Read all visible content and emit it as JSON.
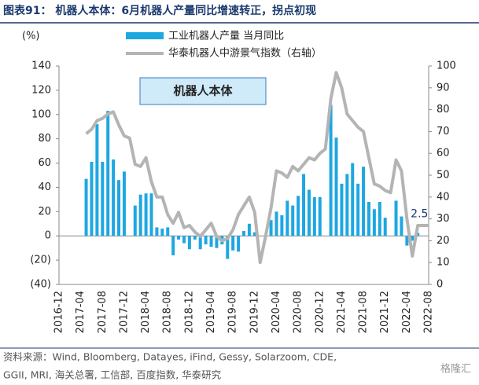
{
  "chart_data": {
    "type": "bar-line",
    "title": "图表91： 机器人本体：6月机器人产量同比增速转正，拐点初现",
    "subtitle": "机器人本体",
    "y_label": "(%)",
    "source": [
      "资料来源：Wind, Bloomberg, Datayes, iFind, Gessy, Solarzoom, CDE,",
      "GGII, MRI, 海关总署, 工信部, 百度指数, 华泰研究"
    ],
    "watermark": "格隆汇",
    "categories": [
      "2016-12",
      null,
      null,
      null,
      "2017-04",
      null,
      null,
      null,
      "2017-08",
      null,
      null,
      null,
      "2017-12",
      null,
      null,
      null,
      "2018-04",
      null,
      null,
      null,
      "2018-08",
      null,
      null,
      null,
      "2018-12",
      null,
      null,
      null,
      "2019-04",
      null,
      null,
      null,
      "2019-08",
      null,
      null,
      null,
      "2019-12",
      null,
      null,
      null,
      "2020-04",
      null,
      null,
      null,
      "2020-08",
      null,
      null,
      null,
      "2020-12",
      null,
      null,
      null,
      "2021-04",
      null,
      null,
      null,
      "2021-08",
      null,
      null,
      null,
      "2021-12",
      null,
      null,
      null,
      "2022-04",
      null,
      null,
      null,
      "2022-08"
    ],
    "series": [
      {
        "name": "工业机器人产量 当月同比",
        "color": "#1ea7e1",
        "type": "bar",
        "values": [
          null,
          null,
          null,
          null,
          null,
          47,
          61,
          92,
          61,
          103,
          63,
          46,
          53,
          null,
          25,
          34,
          35,
          35,
          7,
          6,
          7,
          -16,
          -3,
          -6,
          -11,
          -3,
          -11,
          -7,
          -9,
          -10,
          -7,
          -19,
          -12,
          -13,
          4,
          10,
          3,
          null,
          null,
          13,
          20,
          17,
          29,
          25,
          33,
          51,
          38,
          32,
          32,
          null,
          108,
          81,
          43,
          51,
          60,
          43,
          57,
          28,
          22,
          28,
          15,
          null,
          29,
          16,
          -8,
          -4,
          2.5,
          null,
          null
        ]
      },
      {
        "name": "华泰机器人中游景气指数（右轴）",
        "color": "#b4b4b4",
        "type": "line",
        "axis": "y2",
        "values": [
          null,
          null,
          null,
          null,
          null,
          69,
          71,
          75,
          76,
          78,
          79,
          73,
          68,
          67,
          55,
          54,
          58,
          47,
          40,
          40,
          32,
          28,
          33,
          26,
          27,
          24,
          22,
          25,
          28,
          22,
          20,
          21,
          25,
          32,
          36,
          40,
          33,
          10,
          22,
          35,
          52,
          51,
          49,
          54,
          52,
          55,
          58,
          57,
          60,
          62,
          85,
          97,
          90,
          78,
          75,
          72,
          70,
          58,
          46,
          45,
          43,
          42,
          57,
          52,
          30,
          13,
          27,
          27,
          27
        ]
      }
    ],
    "ylim": [
      -40,
      140
    ],
    "yticks": [
      {
        "value": -40,
        "label": "(40)"
      },
      {
        "value": -20,
        "label": "(20)"
      },
      0,
      20,
      40,
      60,
      80,
      100,
      120,
      140
    ],
    "y2lim": [
      0,
      100
    ],
    "y2ticks": [
      0,
      10,
      20,
      30,
      40,
      50,
      60,
      70,
      80,
      90,
      100
    ]
  }
}
